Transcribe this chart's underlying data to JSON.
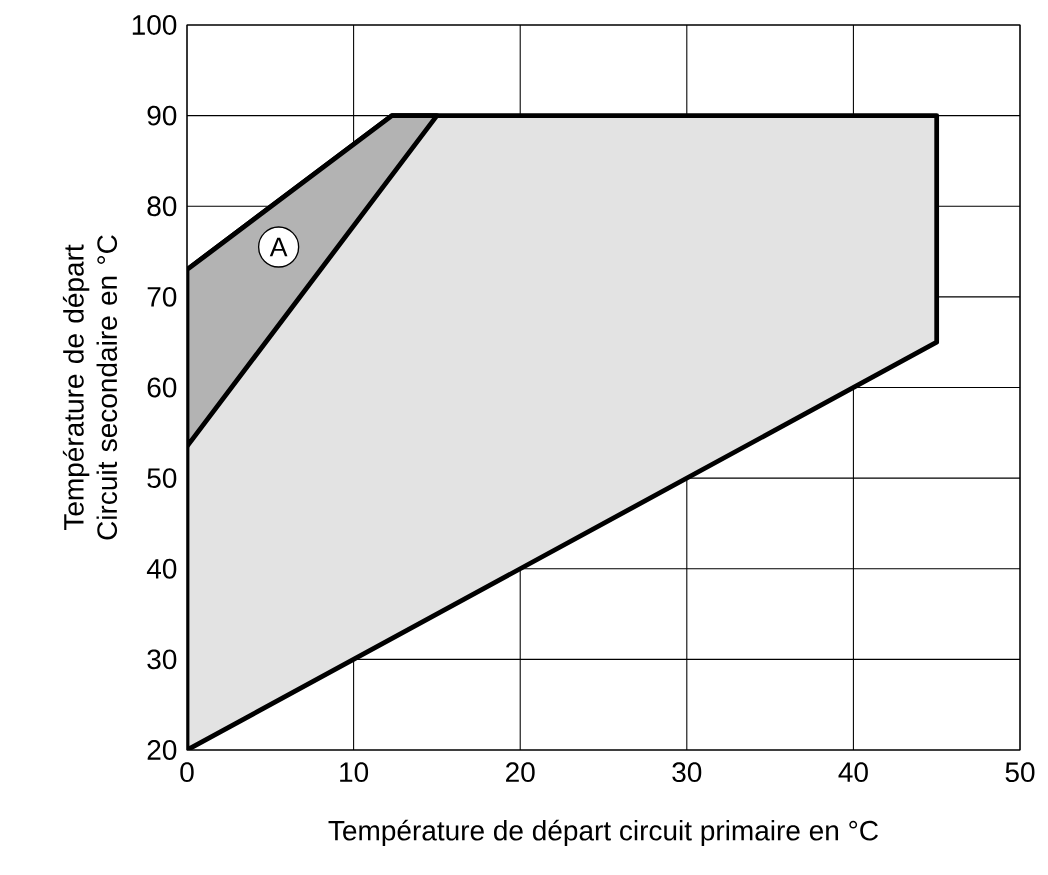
{
  "chart_data": {
    "type": "area",
    "xlabel": "Température de départ circuit primaire en °C",
    "ylabel": "Température de départ Circuit secondaire en °C",
    "series": [
      {
        "color": "#e3e3e3",
        "x": [
          0,
          0,
          12.3,
          45,
          45
        ],
        "values": [
          20,
          73,
          90,
          90,
          65
        ]
      },
      {
        "color": "#b3b3b3",
        "x": [
          0,
          12.3,
          15,
          0
        ],
        "values": [
          73,
          90,
          90,
          53.5
        ]
      }
    ],
    "annotations": [
      {
        "text": "A",
        "x": 5.5,
        "y": 75.5
      }
    ],
    "xlim": [
      0,
      50
    ],
    "ylim": [
      20,
      100
    ],
    "xticks": [
      0,
      10,
      20,
      30,
      40,
      50
    ],
    "yticks": [
      20,
      30,
      40,
      50,
      60,
      70,
      80,
      90,
      100
    ],
    "grid": true
  }
}
